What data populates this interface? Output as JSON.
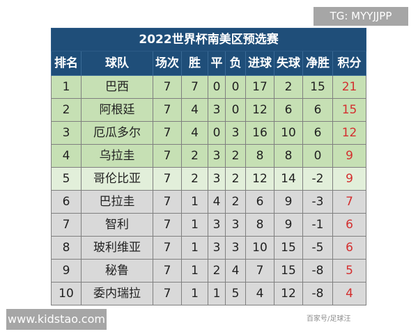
{
  "title": "2022世界杯南美区预选赛",
  "headers": [
    "排名",
    "球队",
    "场次",
    "胜",
    "平",
    "负",
    "进球",
    "失球",
    "净胜",
    "积分"
  ],
  "rows": [
    [
      "1",
      "巴西",
      "7",
      "7",
      "0",
      "0",
      "17",
      "2",
      "15",
      "21"
    ],
    [
      "2",
      "阿根廷",
      "7",
      "4",
      "3",
      "0",
      "12",
      "6",
      "6",
      "15"
    ],
    [
      "3",
      "厄瓜多尔",
      "7",
      "4",
      "0",
      "3",
      "16",
      "10",
      "6",
      "12"
    ],
    [
      "4",
      "乌拉圭",
      "7",
      "2",
      "3",
      "2",
      "8",
      "8",
      "0",
      "9"
    ],
    [
      "5",
      "哥伦比亚",
      "7",
      "2",
      "3",
      "2",
      "12",
      "14",
      "-2",
      "9"
    ],
    [
      "6",
      "巴拉圭",
      "7",
      "1",
      "4",
      "2",
      "6",
      "9",
      "-3",
      "7"
    ],
    [
      "7",
      "智利",
      "7",
      "1",
      "3",
      "3",
      "8",
      "9",
      "-1",
      "6"
    ],
    [
      "8",
      "玻利维亚",
      "7",
      "1",
      "3",
      "3",
      "10",
      "15",
      "-5",
      "6"
    ],
    [
      "9",
      "秘鲁",
      "7",
      "1",
      "2",
      "4",
      "7",
      "15",
      "-8",
      "5"
    ],
    [
      "10",
      "委内瑞拉",
      "7",
      "1",
      "1",
      "5",
      "4",
      "12",
      "-8",
      "4"
    ]
  ],
  "row_styles": [
    "g",
    "g",
    "g",
    "g",
    "lg",
    "gy",
    "gy",
    "gy",
    "gy",
    "gy"
  ],
  "watermark_tg": "TG: MYYJJPP",
  "watermark_site": "www.kidstao.com",
  "watermark_source": "百家号/足球汪",
  "colors": {
    "header": "#1f4e79",
    "top": "#c6e0b4",
    "mid": "#e2efda",
    "rest": "#d9d9d9",
    "points": "#d32f2f"
  }
}
